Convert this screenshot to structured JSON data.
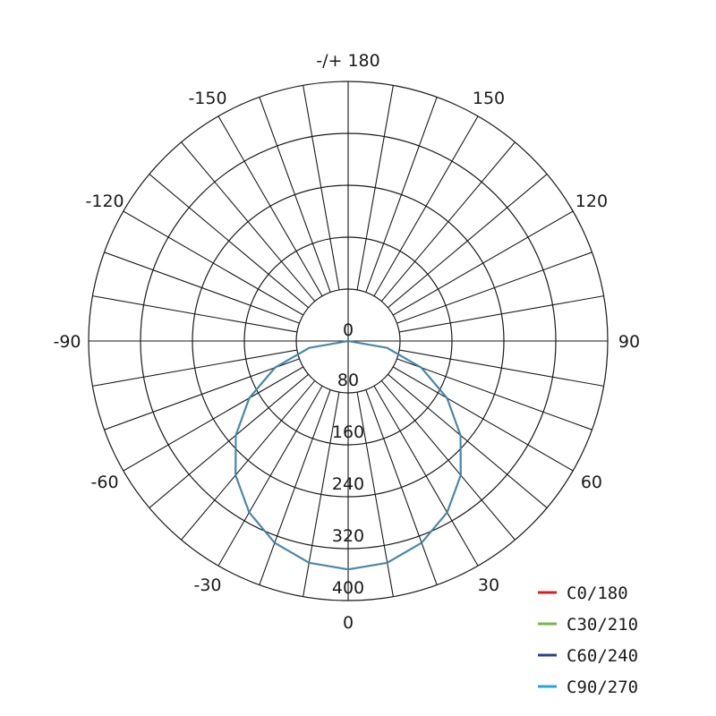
{
  "chart_data": {
    "type": "polar",
    "angle_unit": "degrees",
    "angle_ticks": [
      {
        "angle": 0,
        "label": "0"
      },
      {
        "angle": 30,
        "label": "30"
      },
      {
        "angle": 60,
        "label": "60"
      },
      {
        "angle": 90,
        "label": "90"
      },
      {
        "angle": 120,
        "label": "120"
      },
      {
        "angle": 150,
        "label": "150"
      },
      {
        "angle": 180,
        "label": "-/+ 180"
      },
      {
        "angle": -150,
        "label": "-150"
      },
      {
        "angle": -120,
        "label": "-120"
      },
      {
        "angle": -90,
        "label": "-90"
      },
      {
        "angle": -60,
        "label": "-60"
      },
      {
        "angle": -30,
        "label": "-30"
      }
    ],
    "spoke_step": 10,
    "radial_ticks": [
      "0",
      "80",
      "160",
      "240",
      "320",
      "400"
    ],
    "radial_range": [
      0,
      400
    ],
    "grid": true,
    "legend_position": "bottom-right",
    "angles": [
      -90,
      -80,
      -70,
      -60,
      -50,
      -40,
      -30,
      -20,
      -10,
      0,
      10,
      20,
      30,
      40,
      50,
      60,
      70,
      80,
      90
    ],
    "series": [
      {
        "name": "C0/180",
        "color": "#d62020",
        "values": [
          0,
          61,
          120,
          176,
          226,
          270,
          305,
          331,
          347,
          352,
          347,
          331,
          305,
          270,
          226,
          176,
          120,
          61,
          0
        ]
      },
      {
        "name": "C30/210",
        "color": "#7ab648",
        "values": [
          0,
          61,
          120,
          176,
          226,
          270,
          305,
          331,
          347,
          352,
          347,
          331,
          305,
          270,
          226,
          176,
          120,
          61,
          0
        ]
      },
      {
        "name": "C60/240",
        "color": "#2b3f8c",
        "values": [
          0,
          61,
          120,
          176,
          226,
          270,
          305,
          331,
          347,
          352,
          347,
          331,
          305,
          270,
          226,
          176,
          120,
          61,
          0
        ]
      },
      {
        "name": "C90/270",
        "color": "#2aa3dc",
        "values": [
          0,
          61,
          120,
          176,
          226,
          270,
          305,
          331,
          347,
          352,
          347,
          331,
          305,
          270,
          226,
          176,
          120,
          61,
          0
        ]
      }
    ]
  }
}
